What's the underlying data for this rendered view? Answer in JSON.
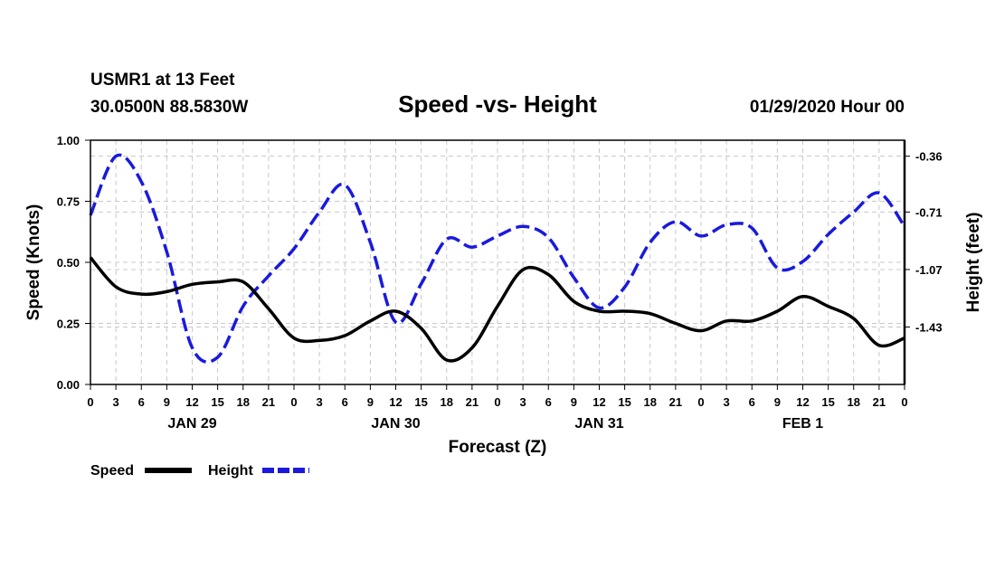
{
  "header": {
    "station": "USMR1 at 13 Feet",
    "coords": "30.0500N 88.5830W",
    "datetime": "01/29/2020 Hour 00"
  },
  "chart_data": {
    "type": "line",
    "title": "Speed -vs- Height",
    "xlabel": "Forecast (Z)",
    "ylabel": "Speed (Knots)",
    "y2label": "Height (feet)",
    "ylim": [
      0,
      1
    ],
    "y2lim": [
      -1.79,
      -0.26
    ],
    "xlim": [
      0,
      96
    ],
    "yticks": [
      "0.00",
      "0.25",
      "0.50",
      "0.75",
      "1.00"
    ],
    "y2ticks": [
      "-0.36",
      "-0.71",
      "-1.07",
      "-1.43"
    ],
    "xtick_labels": [
      "0",
      "3",
      "6",
      "9",
      "12",
      "15",
      "18",
      "21",
      "0",
      "3",
      "6",
      "9",
      "12",
      "15",
      "18",
      "21",
      "0",
      "3",
      "6",
      "9",
      "12",
      "15",
      "18",
      "21",
      "0",
      "3",
      "6",
      "9",
      "12",
      "15",
      "18",
      "21",
      "0"
    ],
    "day_labels": [
      {
        "hour": 12,
        "label": "JAN 29"
      },
      {
        "hour": 36,
        "label": "JAN 30"
      },
      {
        "hour": 60,
        "label": "JAN 31"
      },
      {
        "hour": 84,
        "label": "FEB 1"
      }
    ],
    "grid": true,
    "series": [
      {
        "name": "Speed",
        "color": "#000000",
        "dash": "solid",
        "axis": "left",
        "x": [
          0,
          3,
          6,
          9,
          12,
          15,
          18,
          21,
          24,
          27,
          30,
          33,
          36,
          39,
          42,
          45,
          48,
          51,
          54,
          57,
          60,
          63,
          66,
          69,
          72,
          75,
          78,
          81,
          84,
          87,
          90,
          93,
          96
        ],
        "values": [
          0.52,
          0.4,
          0.37,
          0.38,
          0.41,
          0.42,
          0.42,
          0.31,
          0.19,
          0.18,
          0.2,
          0.26,
          0.3,
          0.23,
          0.1,
          0.15,
          0.32,
          0.47,
          0.45,
          0.34,
          0.3,
          0.3,
          0.29,
          0.25,
          0.22,
          0.26,
          0.26,
          0.3,
          0.36,
          0.32,
          0.27,
          0.16,
          0.19
        ]
      },
      {
        "name": "Height",
        "color": "#1a1adc",
        "dash": "dashed",
        "axis": "right",
        "x": [
          0,
          3,
          6,
          9,
          12,
          15,
          18,
          21,
          24,
          27,
          30,
          33,
          36,
          39,
          42,
          45,
          48,
          51,
          54,
          57,
          60,
          63,
          66,
          69,
          72,
          75,
          78,
          81,
          84,
          87,
          90,
          93,
          96
        ],
        "values": [
          -0.73,
          -0.36,
          -0.52,
          -0.96,
          -1.56,
          -1.62,
          -1.3,
          -1.11,
          -0.94,
          -0.71,
          -0.54,
          -0.9,
          -1.4,
          -1.16,
          -0.88,
          -0.93,
          -0.86,
          -0.8,
          -0.87,
          -1.12,
          -1.31,
          -1.18,
          -0.9,
          -0.77,
          -0.86,
          -0.79,
          -0.81,
          -1.06,
          -1.02,
          -0.85,
          -0.71,
          -0.59,
          -0.8
        ]
      }
    ],
    "legend_placement": "bottom-left"
  }
}
